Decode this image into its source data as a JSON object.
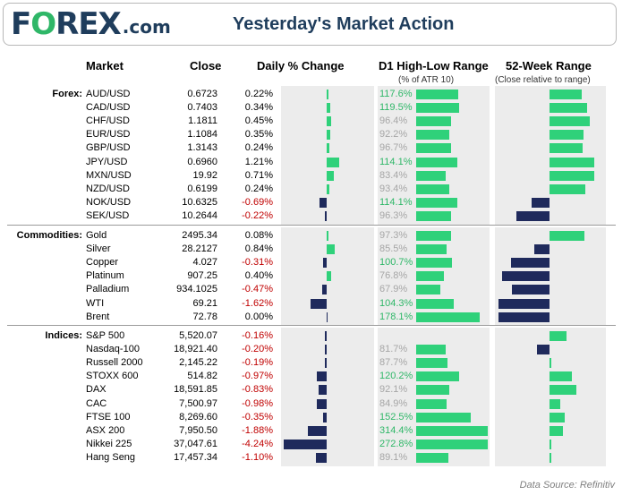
{
  "brand": {
    "logo_text": "F",
    "logo_o": "O",
    "logo_rest": "REX",
    "logo_domain": ".com"
  },
  "title": "Yesterday's Market Action",
  "headers": {
    "market": "Market",
    "close": "Close",
    "daily": "Daily % Change",
    "range": "D1 High-Low Range",
    "range_sub": "(% of ATR 10)",
    "week52": "52-Week Range",
    "week52_sub": "(Close relative to range)"
  },
  "source": "Data Source: Refinitiv",
  "colors": {
    "navy": "#1f2a5c",
    "green": "#2fd17a",
    "negative_text": "#c00000",
    "positive_text": "#2fb768",
    "muted_text": "#a6a6a6",
    "panel": "#ececec"
  },
  "chart_data": {
    "type": "table",
    "groups": [
      {
        "name": "Forex:",
        "rows": [
          {
            "market": "AUD/USD",
            "close": "0.6723",
            "daily": "0.22%",
            "dv": 0.22,
            "range": "117.6%",
            "rv": 117.6,
            "hl": true,
            "w52": 0.58
          },
          {
            "market": "CAD/USD",
            "close": "0.7403",
            "daily": "0.34%",
            "dv": 0.34,
            "range": "119.5%",
            "rv": 119.5,
            "hl": true,
            "w52": 0.67
          },
          {
            "market": "CHF/USD",
            "close": "1.1811",
            "daily": "0.45%",
            "dv": 0.45,
            "range": "96.4%",
            "rv": 96.4,
            "hl": false,
            "w52": 0.73
          },
          {
            "market": "EUR/USD",
            "close": "1.1084",
            "daily": "0.35%",
            "dv": 0.35,
            "range": "92.2%",
            "rv": 92.2,
            "hl": false,
            "w52": 0.62
          },
          {
            "market": "GBP/USD",
            "close": "1.3143",
            "daily": "0.24%",
            "dv": 0.24,
            "range": "96.7%",
            "rv": 96.7,
            "hl": false,
            "w52": 0.6
          },
          {
            "market": "JPY/USD",
            "close": "0.6960",
            "daily": "1.21%",
            "dv": 1.21,
            "range": "114.1%",
            "rv": 114.1,
            "hl": true,
            "w52": 0.8
          },
          {
            "market": "MXN/USD",
            "close": "19.92",
            "daily": "0.71%",
            "dv": 0.71,
            "range": "83.4%",
            "rv": 83.4,
            "hl": false,
            "w52": 0.8
          },
          {
            "market": "NZD/USD",
            "close": "0.6199",
            "daily": "0.24%",
            "dv": 0.24,
            "range": "93.4%",
            "rv": 93.4,
            "hl": false,
            "w52": 0.65
          },
          {
            "market": "NOK/USD",
            "close": "10.6325",
            "daily": "-0.69%",
            "dv": -0.69,
            "range": "114.1%",
            "rv": 114.1,
            "hl": true,
            "w52": -0.33
          },
          {
            "market": "SEK/USD",
            "close": "10.2644",
            "daily": "-0.22%",
            "dv": -0.22,
            "range": "96.3%",
            "rv": 96.3,
            "hl": false,
            "w52": -0.6
          }
        ]
      },
      {
        "name": "Commodities:",
        "rows": [
          {
            "market": "Gold",
            "close": "2495.34",
            "daily": "0.08%",
            "dv": 0.08,
            "range": "97.3%",
            "rv": 97.3,
            "hl": false,
            "w52": 0.63
          },
          {
            "market": "Silver",
            "close": "28.2127",
            "daily": "0.84%",
            "dv": 0.84,
            "range": "85.5%",
            "rv": 85.5,
            "hl": false,
            "w52": -0.28
          },
          {
            "market": "Copper",
            "close": "4.027",
            "daily": "-0.31%",
            "dv": -0.31,
            "range": "100.7%",
            "rv": 100.7,
            "hl": true,
            "w52": -0.7
          },
          {
            "market": "Platinum",
            "close": "907.25",
            "daily": "0.40%",
            "dv": 0.4,
            "range": "76.8%",
            "rv": 76.8,
            "hl": false,
            "w52": -0.85
          },
          {
            "market": "Palladium",
            "close": "934.1025",
            "daily": "-0.47%",
            "dv": -0.47,
            "range": "67.9%",
            "rv": 67.9,
            "hl": false,
            "w52": -0.68
          },
          {
            "market": "WTI",
            "close": "69.21",
            "daily": "-1.62%",
            "dv": -1.62,
            "range": "104.3%",
            "rv": 104.3,
            "hl": true,
            "w52": -0.92
          },
          {
            "market": "Brent",
            "close": "72.78",
            "daily": "0.00%",
            "dv": 0.0,
            "range": "178.1%",
            "rv": 178.1,
            "hl": true,
            "w52": -0.92
          }
        ]
      },
      {
        "name": "Indices:",
        "rows": [
          {
            "market": "S&P 500",
            "close": "5,520.07",
            "daily": "-0.16%",
            "dv": -0.16,
            "range": "",
            "rv": 0,
            "hl": false,
            "w52": 0.3
          },
          {
            "market": "Nasdaq-100",
            "close": "18,921.40",
            "daily": "-0.20%",
            "dv": -0.2,
            "range": "81.7%",
            "rv": 81.7,
            "hl": false,
            "w52": -0.23
          },
          {
            "market": "Russell 2000",
            "close": "2,145.22",
            "daily": "-0.19%",
            "dv": -0.19,
            "range": "87.7%",
            "rv": 87.7,
            "hl": false,
            "w52": 0.04
          },
          {
            "market": "STOXX 600",
            "close": "514.82",
            "daily": "-0.97%",
            "dv": -0.97,
            "range": "120.2%",
            "rv": 120.2,
            "hl": true,
            "w52": 0.4
          },
          {
            "market": "DAX",
            "close": "18,591.85",
            "daily": "-0.83%",
            "dv": -0.83,
            "range": "92.1%",
            "rv": 92.1,
            "hl": false,
            "w52": 0.48
          },
          {
            "market": "CAC",
            "close": "7,500.97",
            "daily": "-0.98%",
            "dv": -0.98,
            "range": "84.9%",
            "rv": 84.9,
            "hl": false,
            "w52": 0.2
          },
          {
            "market": "FTSE 100",
            "close": "8,269.60",
            "daily": "-0.35%",
            "dv": -0.35,
            "range": "152.5%",
            "rv": 152.5,
            "hl": true,
            "w52": 0.28
          },
          {
            "market": "ASX 200",
            "close": "7,950.50",
            "daily": "-1.88%",
            "dv": -1.88,
            "range": "314.4%",
            "rv": 314.4,
            "hl": true,
            "w52": 0.24
          },
          {
            "market": "Nikkei 225",
            "close": "37,047.61",
            "daily": "-4.24%",
            "dv": -4.24,
            "range": "272.8%",
            "rv": 272.8,
            "hl": true,
            "w52": 0.02
          },
          {
            "market": "Hang Seng",
            "close": "17,457.34",
            "daily": "-1.10%",
            "dv": -1.1,
            "range": "89.1%",
            "rv": 89.1,
            "hl": false,
            "w52": 0.02
          }
        ]
      }
    ]
  }
}
